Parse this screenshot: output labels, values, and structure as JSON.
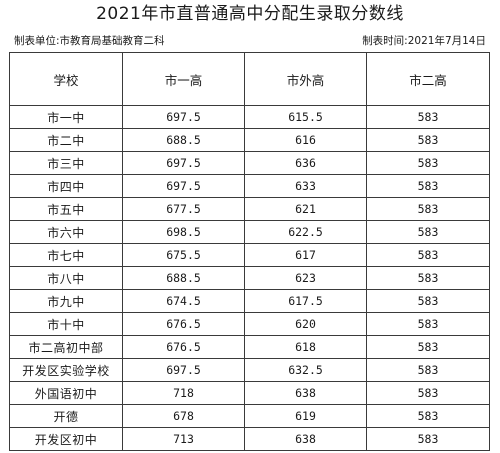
{
  "document": {
    "title": "2021年市直普通高中分配生录取分数线",
    "unit": "制表单位:市教育局基础教育二科",
    "date": "制表时间:2021年7月14日"
  },
  "table": {
    "headers": [
      "学校",
      "市一高",
      "市外高",
      "市二高"
    ],
    "rows": [
      {
        "school": "市一中",
        "a": "697.5",
        "b": "615.5",
        "c": "583"
      },
      {
        "school": "市二中",
        "a": "688.5",
        "b": "616",
        "c": "583"
      },
      {
        "school": "市三中",
        "a": "697.5",
        "b": "636",
        "c": "583"
      },
      {
        "school": "市四中",
        "a": "697.5",
        "b": "633",
        "c": "583"
      },
      {
        "school": "市五中",
        "a": "677.5",
        "b": "621",
        "c": "583"
      },
      {
        "school": "市六中",
        "a": "698.5",
        "b": "622.5",
        "c": "583"
      },
      {
        "school": "市七中",
        "a": "675.5",
        "b": "617",
        "c": "583"
      },
      {
        "school": "市八中",
        "a": "688.5",
        "b": "623",
        "c": "583"
      },
      {
        "school": "市九中",
        "a": "674.5",
        "b": "617.5",
        "c": "583"
      },
      {
        "school": "市十中",
        "a": "676.5",
        "b": "620",
        "c": "583"
      },
      {
        "school": "市二高初中部",
        "a": "676.5",
        "b": "618",
        "c": "583"
      },
      {
        "school": "开发区实验学校",
        "a": "697.5",
        "b": "632.5",
        "c": "583"
      },
      {
        "school": "外国语初中",
        "a": "718",
        "b": "638",
        "c": "583"
      },
      {
        "school": "开德",
        "a": "678",
        "b": "619",
        "c": "583"
      },
      {
        "school": "开发区初中",
        "a": "713",
        "b": "638",
        "c": "583"
      }
    ]
  }
}
